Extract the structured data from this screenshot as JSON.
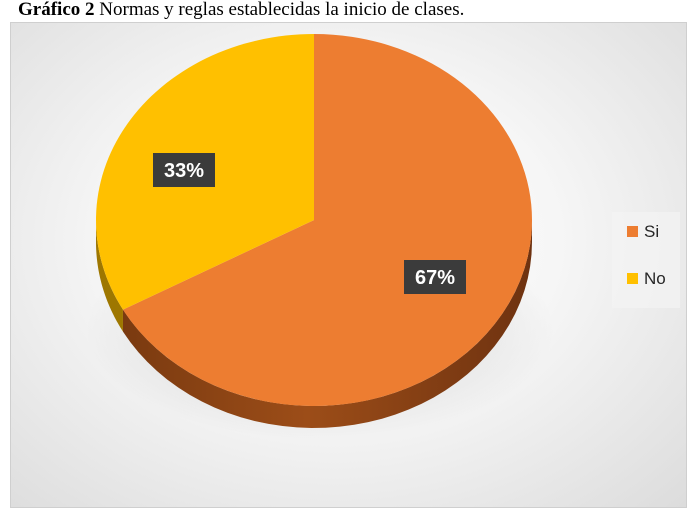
{
  "caption": {
    "bold": "Gráfico 2",
    "text": " Normas y reglas establecidas la inicio de clases."
  },
  "chart_data": {
    "type": "pie",
    "title": "Gráfico 2 Normas y reglas establecidas la inicio de clases.",
    "categories": [
      "Si",
      "No"
    ],
    "values": [
      67,
      33
    ],
    "data_labels": [
      "67%",
      "33%"
    ],
    "legend_position": "right",
    "colors": [
      "#ED7D31",
      "#FFC000"
    ]
  }
}
